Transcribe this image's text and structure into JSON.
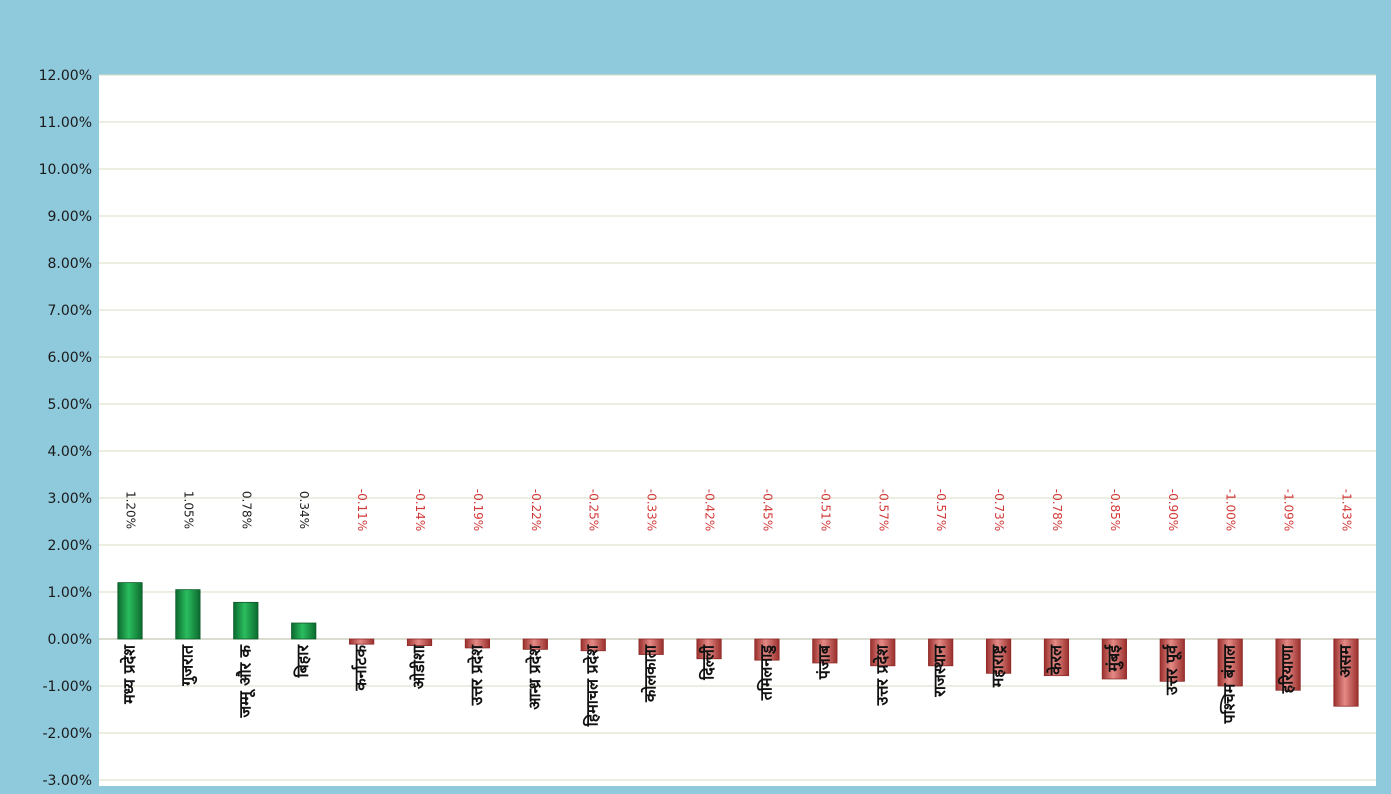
{
  "chart_data": {
    "type": "bar",
    "title": "",
    "xlabel": "",
    "ylabel": "",
    "ylim": [
      -0.03,
      0.12
    ],
    "y_ticks": [
      "-3.00%",
      "-2.00%",
      "-1.00%",
      "0.00%",
      "1.00%",
      "2.00%",
      "3.00%",
      "4.00%",
      "5.00%",
      "6.00%",
      "7.00%",
      "8.00%",
      "9.00%",
      "10.00%",
      "11.00%",
      "12.00%"
    ],
    "grid": true,
    "legend": "none",
    "categories": [
      "मध्य प्रदेश",
      "गुजरात",
      "जम्मू और क",
      "बिहार",
      "कर्नाटक",
      "ओडीशा",
      "उत्तर प्रदेश",
      "आन्ध्र प्रदेश",
      "हिमाचल प्रदेश",
      "कोलकाता",
      "दिल्ली",
      "तमिलनाडु",
      "पंजाब",
      "उत्तर प्रदेश",
      "राजस्थान",
      "महाराष्ट्र",
      "केरल",
      "मुंबई",
      "उत्तर पूर्व",
      "पश्चिम बंगाल",
      "हरियाणा",
      "असम"
    ],
    "values": [
      0.012,
      0.0105,
      0.0078,
      0.0034,
      -0.0011,
      -0.0014,
      -0.0019,
      -0.0022,
      -0.0025,
      -0.0033,
      -0.0042,
      -0.0045,
      -0.0051,
      -0.0057,
      -0.0057,
      -0.0073,
      -0.0078,
      -0.0085,
      -0.009,
      -0.01,
      -0.0109,
      -0.0143
    ],
    "data_labels": [
      "1.20%",
      "1.05%",
      "0.78%",
      "0.34%",
      "-0.11%",
      "-0.14%",
      "-0.19%",
      "-0.22%",
      "-0.25%",
      "-0.33%",
      "-0.42%",
      "-0.45%",
      "-0.51%",
      "-0.57%",
      "-0.57%",
      "-0.73%",
      "-0.78%",
      "-0.85%",
      "-0.90%",
      "-1.00%",
      "-1.09%",
      "-1.43%"
    ]
  },
  "colors": {
    "frame": "#8fc9dc",
    "plot_area": "#ffffff",
    "gridline": "#d8dcc4",
    "positive_bar": "#1a9a4a",
    "negative_bar": "#c8504c",
    "positive_label": "#222222",
    "negative_label": "#d23a3a"
  }
}
